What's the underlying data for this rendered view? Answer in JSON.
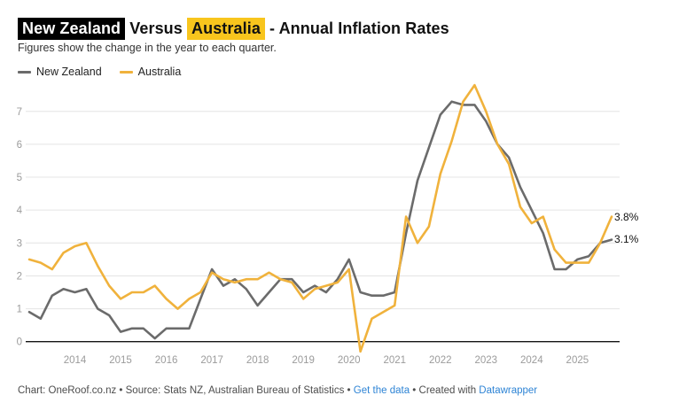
{
  "title": {
    "highlight_black": "New Zealand",
    "versus": " Versus ",
    "highlight_yellow": "Australia",
    "rest": " - Annual Inflation Rates"
  },
  "subtitle": "Figures show the change in the year to each quarter.",
  "legend": {
    "new_zealand": "New Zealand",
    "australia": "Australia"
  },
  "colors": {
    "new_zealand_line": "#6b6b6b",
    "australia_line": "#f0b23c",
    "title_highlight_yellow": "#f8c51d",
    "title_highlight_black": "#000000",
    "gridline": "#e4e4e4",
    "zero_line": "#141414",
    "tick_label": "#9b9b9b",
    "link_blue": "#2e84d5"
  },
  "end_labels": {
    "australia": "3.8%",
    "new_zealand": "3.1%"
  },
  "footer": {
    "text": "Chart: OneRoof.co.nz • Source: Stats NZ, Australian Bureau of Statistics •",
    "get_the_data": "Get the data",
    "dot": "•",
    "created_with": "Created with",
    "datawrapper": "Datawrapper"
  },
  "chart_data": {
    "type": "line",
    "title": "New Zealand Versus Australia - Annual Inflation Rates",
    "x_unit": "quarter",
    "x_start": "2013 Q1",
    "x_end": "2025 Q4",
    "x_tick_years": [
      2014,
      2015,
      2016,
      2017,
      2018,
      2019,
      2020,
      2021,
      2022,
      2023,
      2024,
      2025
    ],
    "y_ticks": [
      0,
      1,
      2,
      3,
      4,
      5,
      6,
      7
    ],
    "ylim": [
      -0.5,
      7.9
    ],
    "grid": true,
    "legend_position": "top-left",
    "series": [
      {
        "name": "New Zealand",
        "color": "#6b6b6b",
        "end_label": "3.1%",
        "values": [
          0.9,
          0.7,
          1.4,
          1.6,
          1.5,
          1.6,
          1.0,
          0.8,
          0.3,
          0.4,
          0.4,
          0.1,
          0.4,
          0.4,
          0.4,
          1.3,
          2.2,
          1.7,
          1.9,
          1.6,
          1.1,
          1.5,
          1.9,
          1.9,
          1.5,
          1.7,
          1.5,
          1.9,
          2.5,
          1.5,
          1.4,
          1.4,
          1.5,
          3.3,
          4.9,
          5.9,
          6.9,
          7.3,
          7.2,
          7.2,
          6.7,
          6.0,
          5.6,
          4.7,
          4.0,
          3.3,
          2.2,
          2.2,
          2.5,
          2.6,
          3.0,
          3.1
        ]
      },
      {
        "name": "Australia",
        "color": "#f0b23c",
        "end_label": "3.8%",
        "values": [
          2.5,
          2.4,
          2.2,
          2.7,
          2.9,
          3.0,
          2.3,
          1.7,
          1.3,
          1.5,
          1.5,
          1.7,
          1.3,
          1.0,
          1.3,
          1.5,
          2.1,
          1.9,
          1.8,
          1.9,
          1.9,
          2.1,
          1.9,
          1.8,
          1.3,
          1.6,
          1.7,
          1.8,
          2.2,
          -0.3,
          0.7,
          0.9,
          1.1,
          3.8,
          3.0,
          3.5,
          5.1,
          6.1,
          7.3,
          7.8,
          7.0,
          6.0,
          5.4,
          4.1,
          3.6,
          3.8,
          2.8,
          2.4,
          2.4,
          2.4,
          3.0,
          3.8
        ]
      }
    ]
  }
}
